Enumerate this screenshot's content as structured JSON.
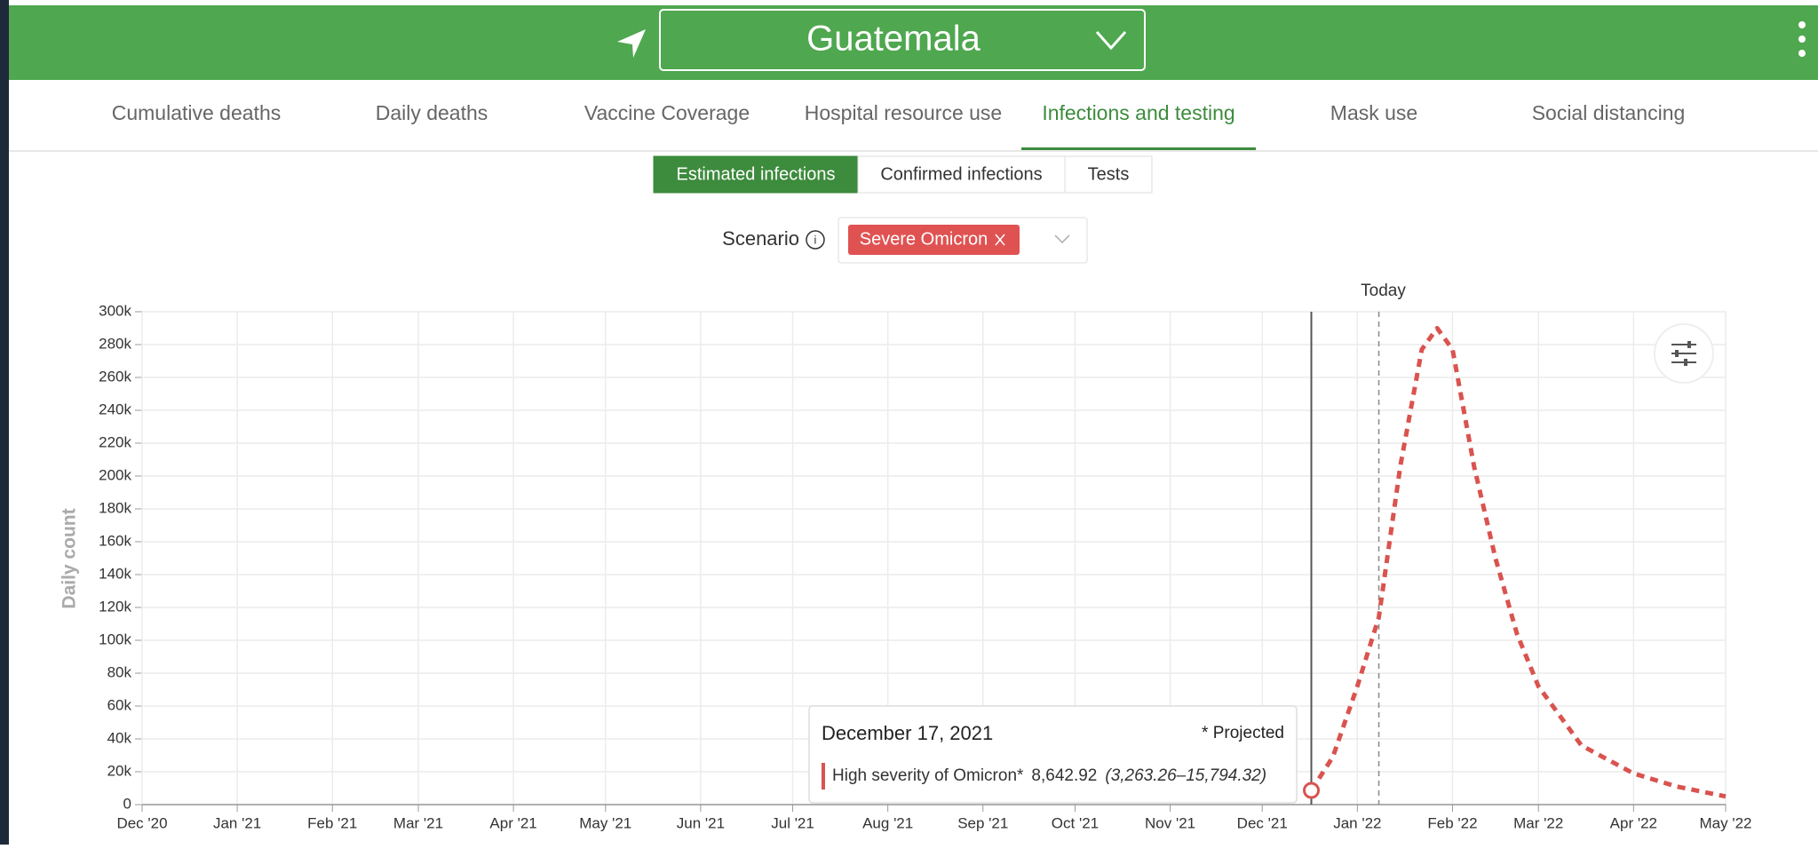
{
  "header": {
    "title": "Guatemala"
  },
  "tabs": [
    "Cumulative deaths",
    "Daily deaths",
    "Vaccine Coverage",
    "Hospital resource use",
    "Infections and testing",
    "Mask use",
    "Social distancing"
  ],
  "active_tab": 4,
  "subtabs": [
    "Estimated infections",
    "Confirmed infections",
    "Tests"
  ],
  "active_subtab": 0,
  "scenario": {
    "label": "Scenario",
    "selected": "Severe Omicron"
  },
  "chart_data": {
    "type": "line",
    "ylabel": "Daily count",
    "today_label": "Today",
    "today": "2022-01-08",
    "x": [
      "2021-12-17",
      "2021-12-24",
      "2022-01-01",
      "2022-01-08",
      "2022-01-15",
      "2022-01-22",
      "2022-01-27",
      "2022-02-01",
      "2022-02-08",
      "2022-02-15",
      "2022-02-22",
      "2022-03-01",
      "2022-03-15",
      "2022-04-01",
      "2022-04-15",
      "2022-05-01"
    ],
    "series": [
      {
        "name": "High severity of Omicron*",
        "color": "#d9534f",
        "values": [
          8642.92,
          29000,
          72000,
          114000,
          206000,
          277000,
          290000,
          277000,
          206000,
          150000,
          104000,
          72000,
          36000,
          19000,
          11000,
          5000
        ]
      }
    ],
    "xlim": [
      "2020-12-01",
      "2022-05-01"
    ],
    "xticks": [
      {
        "value": "2020-12-01",
        "label": "Dec '20"
      },
      {
        "value": "2021-01-01",
        "label": "Jan '21"
      },
      {
        "value": "2021-02-01",
        "label": "Feb '21"
      },
      {
        "value": "2021-03-01",
        "label": "Mar '21"
      },
      {
        "value": "2021-04-01",
        "label": "Apr '21"
      },
      {
        "value": "2021-05-01",
        "label": "May '21"
      },
      {
        "value": "2021-06-01",
        "label": "Jun '21"
      },
      {
        "value": "2021-07-01",
        "label": "Jul '21"
      },
      {
        "value": "2021-08-01",
        "label": "Aug '21"
      },
      {
        "value": "2021-09-01",
        "label": "Sep '21"
      },
      {
        "value": "2021-10-01",
        "label": "Oct '21"
      },
      {
        "value": "2021-11-01",
        "label": "Nov '21"
      },
      {
        "value": "2021-12-01",
        "label": "Dec '21"
      },
      {
        "value": "2022-01-01",
        "label": "Jan '22"
      },
      {
        "value": "2022-02-01",
        "label": "Feb '22"
      },
      {
        "value": "2022-03-01",
        "label": "Mar '22"
      },
      {
        "value": "2022-04-01",
        "label": "Apr '22"
      },
      {
        "value": "2022-05-01",
        "label": "May '22"
      }
    ],
    "ylim": [
      0,
      300000
    ],
    "yticks": [
      0,
      {
        "value": 20000,
        "label": "20k"
      },
      {
        "value": 40000,
        "label": "40k"
      },
      {
        "value": 60000,
        "label": "60k"
      },
      {
        "value": 80000,
        "label": "80k"
      },
      {
        "value": 100000,
        "label": "100k"
      },
      {
        "value": 120000,
        "label": "120k"
      },
      {
        "value": 140000,
        "label": "140k"
      },
      {
        "value": 160000,
        "label": "160k"
      },
      {
        "value": 180000,
        "label": "180k"
      },
      {
        "value": 200000,
        "label": "200k"
      },
      {
        "value": 220000,
        "label": "220k"
      },
      {
        "value": 240000,
        "label": "240k"
      },
      {
        "value": 260000,
        "label": "260k"
      },
      {
        "value": 280000,
        "label": "280k"
      },
      {
        "value": 300000,
        "label": "300k"
      }
    ],
    "grid": true,
    "tooltip": {
      "date": "December 17, 2021",
      "note": "* Projected",
      "value": "8,642.92",
      "interval": "(3,263.26–15,794.32)"
    }
  }
}
